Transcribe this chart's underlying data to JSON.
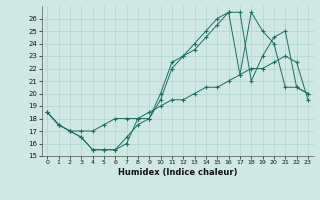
{
  "xlabel": "Humidex (Indice chaleur)",
  "background_color": "#cfe8e4",
  "grid_color": "#b0d4ce",
  "line_color": "#1a6e64",
  "xlim": [
    -0.5,
    23.5
  ],
  "ylim": [
    15,
    27
  ],
  "xticks": [
    0,
    1,
    2,
    3,
    4,
    5,
    6,
    7,
    8,
    9,
    10,
    11,
    12,
    13,
    14,
    15,
    16,
    17,
    18,
    19,
    20,
    21,
    22,
    23
  ],
  "yticks": [
    15,
    16,
    17,
    18,
    19,
    20,
    21,
    22,
    23,
    24,
    25,
    26
  ],
  "line1_x": [
    0,
    1,
    2,
    3,
    4,
    5,
    6,
    7,
    8,
    9,
    10,
    11,
    12,
    13,
    14,
    15,
    16,
    17,
    18,
    19,
    20,
    21,
    22,
    23
  ],
  "line1_y": [
    18.5,
    17.5,
    17.0,
    17.0,
    17.0,
    17.5,
    18.0,
    18.0,
    18.0,
    18.5,
    19.0,
    19.5,
    19.5,
    20.0,
    20.5,
    20.5,
    21.0,
    21.5,
    22.0,
    22.0,
    22.5,
    23.0,
    22.5,
    19.5
  ],
  "line2_x": [
    0,
    1,
    2,
    3,
    4,
    5,
    6,
    7,
    8,
    9,
    10,
    11,
    12,
    13,
    14,
    15,
    16,
    17,
    18,
    19,
    20,
    21,
    22,
    23
  ],
  "line2_y": [
    18.5,
    17.5,
    17.0,
    16.5,
    15.5,
    15.5,
    15.5,
    16.0,
    18.0,
    18.0,
    19.5,
    22.0,
    23.0,
    24.0,
    25.0,
    26.0,
    26.5,
    21.5,
    26.5,
    25.0,
    24.0,
    20.5,
    20.5,
    20.0
  ],
  "line3_x": [
    0,
    1,
    2,
    3,
    4,
    5,
    6,
    7,
    8,
    9,
    10,
    11,
    12,
    13,
    14,
    15,
    16,
    17,
    18,
    19,
    20,
    21,
    22,
    23
  ],
  "line3_y": [
    18.5,
    17.5,
    17.0,
    16.5,
    15.5,
    15.5,
    15.5,
    16.5,
    17.5,
    18.0,
    20.0,
    22.5,
    23.0,
    23.5,
    24.5,
    25.5,
    26.5,
    26.5,
    21.0,
    23.0,
    24.5,
    25.0,
    20.5,
    20.0
  ]
}
